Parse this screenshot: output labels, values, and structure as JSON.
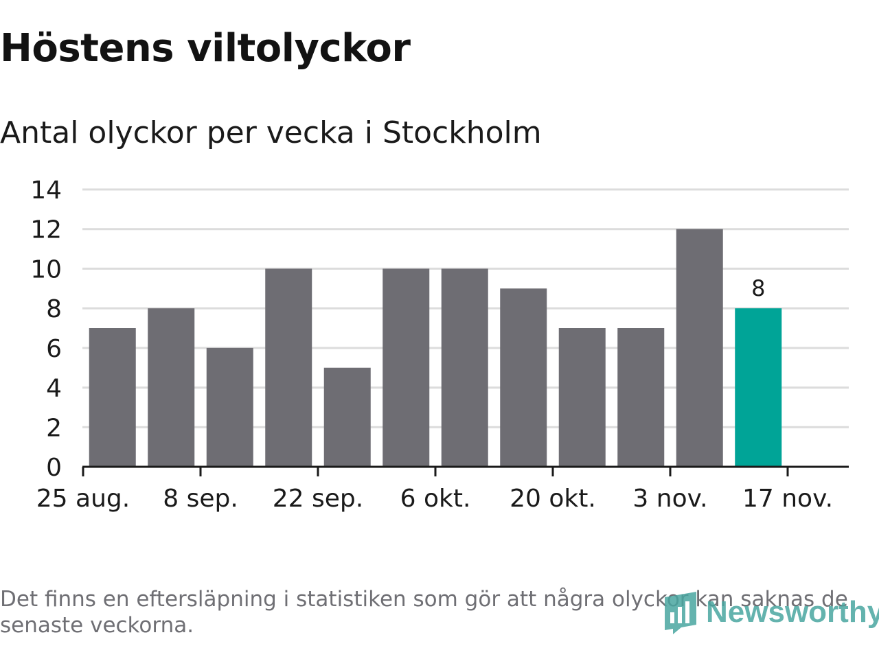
{
  "header": {
    "title": "Höstens viltolyckor",
    "subtitle": "Antal olyckor per vecka i Stockholm"
  },
  "footer": {
    "note": "Det finns en eftersläpning i statistiken som gör att några olyckor kan saknas de senaste veckorna.",
    "brand": "Newsworthy",
    "brand_icon": "newsworthy-logo-icon"
  },
  "colors": {
    "bar": "#6e6d73",
    "highlight": "#00a497",
    "grid": "#dcdcdc",
    "axis": "#1a1a1a",
    "text": "#1a1a1a"
  },
  "chart_data": {
    "type": "bar",
    "title": "Höstens viltolyckor",
    "subtitle": "Antal olyckor per vecka i Stockholm",
    "xlabel": "",
    "ylabel": "",
    "ylim": [
      0,
      14
    ],
    "yticks": [
      0,
      2,
      4,
      6,
      8,
      10,
      12,
      14
    ],
    "values": [
      7,
      8,
      6,
      10,
      5,
      10,
      10,
      9,
      7,
      7,
      12,
      8
    ],
    "xticks": [
      {
        "index": 0,
        "label": "25 aug."
      },
      {
        "index": 2,
        "label": "8 sep."
      },
      {
        "index": 4,
        "label": "22 sep."
      },
      {
        "index": 6,
        "label": "6 okt."
      },
      {
        "index": 8,
        "label": "20 okt."
      },
      {
        "index": 10,
        "label": "3 nov."
      },
      {
        "index": 12,
        "label": "17 nov."
      }
    ],
    "highlight_index": 11,
    "data_labels": [
      {
        "index": 11,
        "label": "8"
      }
    ],
    "grid": true,
    "legend": "none"
  }
}
